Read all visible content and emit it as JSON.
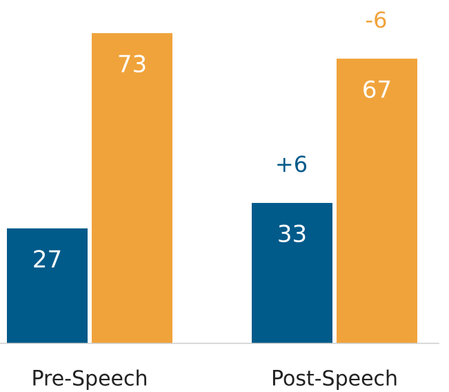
{
  "chart_data": {
    "type": "bar",
    "categories": [
      "Pre-Speech",
      "Post-Speech"
    ],
    "series": [
      {
        "color": "#005a8a",
        "values": [
          27,
          33
        ],
        "annotations": [
          null,
          "+6"
        ]
      },
      {
        "color": "#f0a33b",
        "values": [
          73,
          67
        ],
        "annotations": [
          null,
          "-6"
        ]
      }
    ],
    "ylim": [
      0,
      80
    ]
  }
}
